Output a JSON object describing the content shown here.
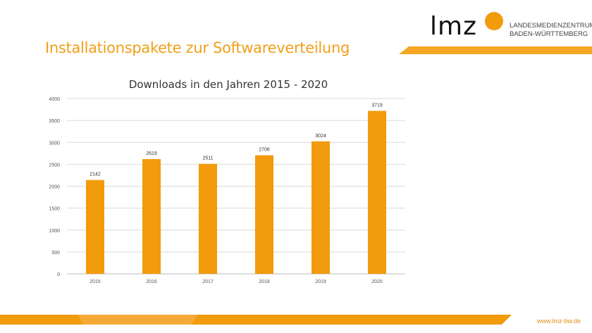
{
  "slide": {
    "title": "Installationspakete zur Softwareverteilung",
    "logo": {
      "text": "lmz",
      "line1": "LANDESMEDIENZENTRUM",
      "line2": "BADEN-WÜRTTEMBERG"
    },
    "footer_url": "www.lmz-bw.de",
    "accent_color": "#f29b0d"
  },
  "chart_data": {
    "type": "bar",
    "title": "Downloads in den Jahren 2015 - 2020",
    "xlabel": "",
    "ylabel": "",
    "categories": [
      "2015",
      "2016",
      "2017",
      "2018",
      "2019",
      "2020"
    ],
    "values": [
      2142,
      2619,
      2511,
      2706,
      3024,
      3719
    ],
    "ylim": [
      0,
      4000
    ],
    "yticks": [
      0,
      500,
      1000,
      1500,
      2000,
      2500,
      3000,
      3500,
      4000
    ],
    "grid": true,
    "legend": "none",
    "bar_color": "#f29b0d"
  }
}
